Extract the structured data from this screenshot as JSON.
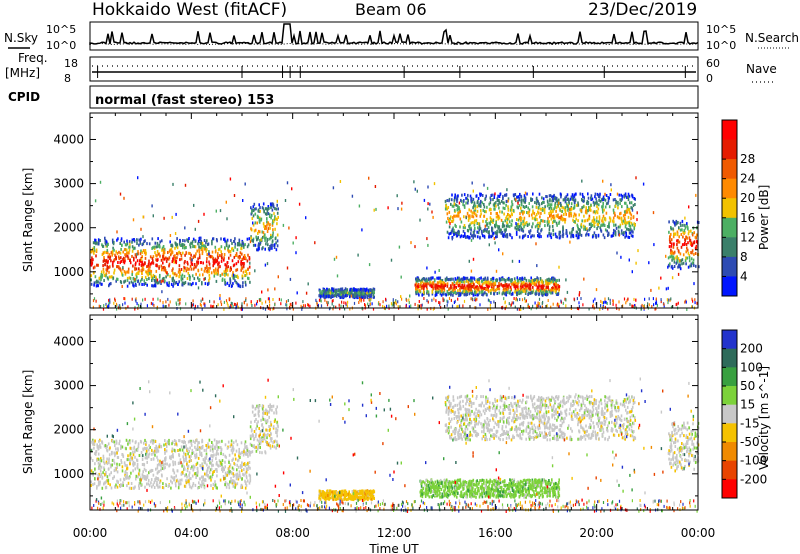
{
  "header": {
    "title": "Hokkaido West (fitACF)",
    "beam": "Beam 06",
    "date": "23/Dec/2019"
  },
  "top_panels": {
    "nsky_label": "N.Sky",
    "nsky_ticks": [
      "10^5",
      "10^0"
    ],
    "nsearch_label": "N.Search",
    "nsearch_ticks": [
      "10^5",
      "10^0"
    ],
    "freq_label": "Freq.",
    "freq_unit": "[MHz]",
    "freq_ticks": [
      "18",
      "8"
    ],
    "nave_label": "Nave",
    "nave_ticks": [
      "60",
      "0"
    ],
    "cpid_label": "CPID",
    "cpid_text": "normal (fast stereo) 153"
  },
  "chart_data": [
    {
      "type": "heatmap",
      "name": "power",
      "ylabel": "Slant Range [km]",
      "yticks": [
        1000,
        2000,
        3000,
        4000
      ],
      "ylim": [
        180,
        4600
      ],
      "xlim": [
        0,
        24
      ],
      "colorbar": {
        "label": "Power [dB]",
        "ticks": [
          4,
          8,
          12,
          16,
          20,
          24,
          28
        ],
        "colors": [
          "#0016ff",
          "#2d4bb3",
          "#3a7f6a",
          "#4caf63",
          "#f2c200",
          "#ff8a00",
          "#f05a00",
          "#e51c00",
          "#ff0000"
        ]
      },
      "regions": [
        {
          "t0": 0.0,
          "t1": 6.3,
          "r0": 700,
          "r1": 1800,
          "level": "strong"
        },
        {
          "t0": 6.3,
          "t1": 7.4,
          "r0": 1500,
          "r1": 2600,
          "level": "medium"
        },
        {
          "t0": 9.0,
          "t1": 11.2,
          "r0": 450,
          "r1": 650,
          "level": "weak"
        },
        {
          "t0": 12.8,
          "t1": 18.5,
          "r0": 500,
          "r1": 900,
          "level": "strong"
        },
        {
          "t0": 14.0,
          "t1": 21.5,
          "r0": 1800,
          "r1": 2800,
          "level": "medium"
        },
        {
          "t0": 22.8,
          "t1": 24.0,
          "r0": 1100,
          "r1": 2200,
          "level": "strong"
        }
      ]
    },
    {
      "type": "heatmap",
      "name": "velocity",
      "ylabel": "Slant Range [km]",
      "yticks": [
        1000,
        2000,
        3000,
        4000
      ],
      "ylim": [
        180,
        4600
      ],
      "xlim": [
        0,
        24
      ],
      "xticks": [
        "00:00",
        "04:00",
        "08:00",
        "12:00",
        "16:00",
        "20:00",
        "00:00"
      ],
      "xlabel": "Time UT",
      "colorbar": {
        "label": "Velocity [m s^-1]",
        "ticks": [
          "200",
          "100",
          "50",
          "15",
          "-15",
          "-50",
          "-100",
          "-200"
        ],
        "colors": [
          "#2233cc",
          "#2e6b5a",
          "#38a040",
          "#7cd23a",
          "#c8c8c8",
          "#f5c200",
          "#f08a00",
          "#e84400",
          "#ff0000"
        ]
      },
      "regions": [
        {
          "t0": 0.0,
          "t1": 6.3,
          "r0": 700,
          "r1": 1800,
          "v": 0
        },
        {
          "t0": 6.3,
          "t1": 7.4,
          "r0": 1500,
          "r1": 2600,
          "v": 0
        },
        {
          "t0": 9.0,
          "t1": 11.2,
          "r0": 450,
          "r1": 650,
          "v": -50
        },
        {
          "t0": 13.0,
          "t1": 18.5,
          "r0": 500,
          "r1": 900,
          "v": 50
        },
        {
          "t0": 14.0,
          "t1": 21.5,
          "r0": 1800,
          "r1": 2800,
          "v": 0
        },
        {
          "t0": 22.8,
          "t1": 24.0,
          "r0": 1100,
          "r1": 2200,
          "v": 0
        }
      ]
    }
  ]
}
